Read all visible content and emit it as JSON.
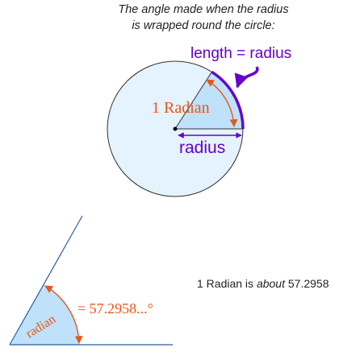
{
  "caption": {
    "line1": "The angle made when the radius",
    "line2": "is wrapped round the circle:"
  },
  "circle_diagram": {
    "arc_label": "length = radius",
    "angle_label": "1 Radian",
    "radius_label": "radius"
  },
  "angle_diagram": {
    "wedge_label": "radian",
    "value_label": "= 57.2958...°"
  },
  "note": {
    "prefix": "1 Radian is ",
    "emphasis": "about",
    "suffix": " 57.2958"
  },
  "colors": {
    "circle_fill": "#e4f3fd",
    "wedge_fill": "#bfe2fa",
    "arc_purple": "#6600cc",
    "arrow_orange": "#e8561a",
    "angle_line": "#2a5c9e"
  }
}
